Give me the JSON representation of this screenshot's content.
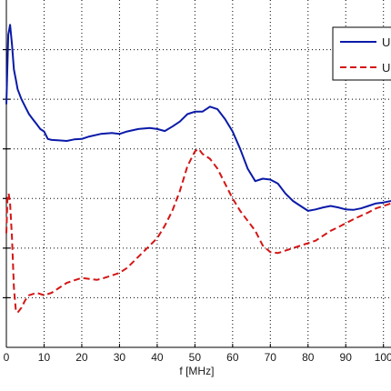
{
  "chart_data": {
    "type": "line",
    "title": "",
    "xlabel": "f [MHz]",
    "ylabel": "",
    "xlim": [
      0,
      102
    ],
    "ylim": [
      0,
      7
    ],
    "x_ticks": [
      0,
      10,
      20,
      30,
      40,
      50,
      60,
      70,
      80,
      90,
      100
    ],
    "x_tick_labels": [
      "0",
      "10",
      "20",
      "30",
      "40",
      "50",
      "60",
      "70",
      "80",
      "90",
      "100"
    ],
    "grid": true,
    "legend_position": "top-right",
    "series": [
      {
        "name": "U",
        "color": "#0a1aa8",
        "dash": "solid",
        "x": [
          0,
          0.5,
          1,
          1.5,
          2,
          2.5,
          3,
          4,
          5,
          6,
          7,
          8,
          9,
          10,
          11,
          12,
          14,
          16,
          18,
          20,
          22,
          25,
          28,
          30,
          32,
          35,
          38,
          40,
          42,
          44,
          46,
          48,
          50,
          52,
          54,
          56,
          58,
          60,
          62,
          64,
          66,
          68,
          70,
          72,
          74,
          76,
          78,
          80,
          82,
          84,
          86,
          88,
          90,
          92,
          94,
          96,
          98,
          100,
          102
        ],
        "y": [
          4.9,
          6.3,
          6.5,
          6.1,
          5.6,
          5.4,
          5.2,
          5.0,
          4.85,
          4.7,
          4.6,
          4.5,
          4.4,
          4.35,
          4.2,
          4.18,
          4.17,
          4.16,
          4.19,
          4.2,
          4.25,
          4.3,
          4.32,
          4.3,
          4.35,
          4.4,
          4.42,
          4.4,
          4.36,
          4.45,
          4.55,
          4.7,
          4.75,
          4.75,
          4.85,
          4.8,
          4.6,
          4.35,
          4.0,
          3.6,
          3.35,
          3.4,
          3.38,
          3.3,
          3.1,
          2.95,
          2.85,
          2.75,
          2.78,
          2.82,
          2.85,
          2.82,
          2.78,
          2.77,
          2.8,
          2.85,
          2.9,
          2.92,
          2.95
        ]
      },
      {
        "name": "U",
        "color": "#d41616",
        "dash": "dashed",
        "x": [
          0,
          0.3,
          0.6,
          1,
          1.5,
          2,
          2.5,
          3,
          4,
          5,
          6,
          8,
          10,
          12,
          14,
          16,
          18,
          20,
          22,
          24,
          26,
          28,
          30,
          32,
          34,
          36,
          38,
          40,
          42,
          44,
          46,
          48,
          50,
          51,
          52,
          54,
          56,
          58,
          60,
          62,
          64,
          66,
          68,
          70,
          72,
          74,
          76,
          78,
          80,
          82,
          84,
          86,
          88,
          90,
          92,
          94,
          96,
          98,
          100,
          102
        ],
        "y": [
          2.3,
          3.0,
          3.1,
          2.9,
          2.2,
          1.2,
          0.75,
          0.7,
          0.8,
          0.95,
          1.05,
          1.1,
          1.05,
          1.1,
          1.2,
          1.3,
          1.35,
          1.4,
          1.38,
          1.36,
          1.4,
          1.45,
          1.5,
          1.6,
          1.75,
          1.9,
          2.05,
          2.2,
          2.45,
          2.75,
          3.15,
          3.65,
          3.95,
          4.0,
          3.9,
          3.8,
          3.6,
          3.3,
          3.0,
          2.75,
          2.55,
          2.35,
          2.05,
          1.92,
          1.9,
          1.95,
          2.0,
          2.05,
          2.1,
          2.15,
          2.25,
          2.35,
          2.42,
          2.5,
          2.58,
          2.65,
          2.72,
          2.8,
          2.85,
          2.9
        ]
      }
    ]
  }
}
